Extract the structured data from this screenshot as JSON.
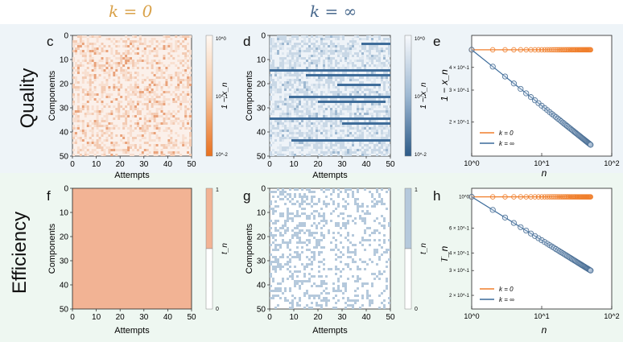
{
  "columns": {
    "k0": "k = 0",
    "kinf": "k = ∞"
  },
  "rows": {
    "quality": "Quality",
    "efficiency": "Efficiency"
  },
  "colors": {
    "orange": "#f07f2c",
    "blue": "#3a6a9a",
    "band_blue": "#eef4f8",
    "band_green": "#eef7f1"
  },
  "panels": {
    "c": "c",
    "d": "d",
    "e": "e",
    "f": "f",
    "g": "g",
    "h": "h"
  },
  "chart_data": [
    {
      "panel": "c",
      "type": "heatmap",
      "xlabel": "Attempts",
      "ylabel": "Components",
      "xticks": [
        "0",
        "10",
        "20",
        "30",
        "40",
        "50"
      ],
      "yticks": [
        "0",
        "10",
        "20",
        "30",
        "40",
        "50"
      ],
      "colorbar": {
        "label": "1 − x_n",
        "ticks": [
          "10^0",
          "10^-1",
          "10^-2"
        ],
        "scale": "log",
        "colormap": "orange"
      }
    },
    {
      "panel": "d",
      "type": "heatmap",
      "xlabel": "Attempts",
      "ylabel": "Components",
      "xticks": [
        "0",
        "10",
        "20",
        "30",
        "40",
        "50"
      ],
      "yticks": [
        "0",
        "10",
        "20",
        "30",
        "40",
        "50"
      ],
      "colorbar": {
        "label": "1 − x_n",
        "ticks": [
          "10^0",
          "10^-1",
          "10^-2"
        ],
        "scale": "log",
        "colormap": "blue"
      }
    },
    {
      "panel": "e",
      "type": "line",
      "xlabel": "n",
      "ylabel": "1 − x_n",
      "xscale": "log",
      "yscale": "log",
      "xticks": [
        "10^0",
        "10^1",
        "10^2"
      ],
      "yticks": [
        "4 × 10^-1",
        "3 × 10^-1",
        "2 × 10^-1"
      ],
      "xlim": [
        1,
        100
      ],
      "ylim": [
        0.13,
        0.6
      ],
      "legend": [
        "k = 0",
        "k = ∞"
      ],
      "series": [
        {
          "name": "k = 0",
          "x_range": [
            1,
            50
          ],
          "y_const": 0.5
        },
        {
          "name": "k = ∞",
          "x_range": [
            1,
            50
          ],
          "y_start": 0.5,
          "y_end": 0.15
        }
      ]
    },
    {
      "panel": "f",
      "type": "heatmap",
      "xlabel": "Attempts",
      "ylabel": "Components",
      "xticks": [
        "0",
        "10",
        "20",
        "30",
        "40",
        "50"
      ],
      "yticks": [
        "0",
        "10",
        "20",
        "30",
        "40",
        "50"
      ],
      "colorbar": {
        "label": "t_n",
        "ticks": [
          "1",
          "0"
        ],
        "colormap": "orange-binary"
      }
    },
    {
      "panel": "g",
      "type": "heatmap",
      "xlabel": "Attempts",
      "ylabel": "Components",
      "xticks": [
        "0",
        "10",
        "20",
        "30",
        "40",
        "50"
      ],
      "yticks": [
        "0",
        "10",
        "20",
        "30",
        "40",
        "50"
      ],
      "colorbar": {
        "label": "t_n",
        "ticks": [
          "1",
          "0"
        ],
        "colormap": "blue-binary"
      }
    },
    {
      "panel": "h",
      "type": "line",
      "xlabel": "n",
      "ylabel": "T_n",
      "xscale": "log",
      "yscale": "log",
      "xticks": [
        "10^0",
        "10^1",
        "10^2"
      ],
      "yticks": [
        "10^0",
        "6 × 10^-1",
        "4 × 10^-1",
        "3 × 10^-1",
        "2 × 10^-1"
      ],
      "xlim": [
        1,
        100
      ],
      "ylim": [
        0.16,
        1.15
      ],
      "legend": [
        "k = 0",
        "k = ∞"
      ],
      "series": [
        {
          "name": "k = 0",
          "x_range": [
            1,
            50
          ],
          "y_const": 1.0
        },
        {
          "name": "k = ∞",
          "x_range": [
            1,
            50
          ],
          "y_start": 1.0,
          "y_end": 0.3
        }
      ]
    }
  ]
}
